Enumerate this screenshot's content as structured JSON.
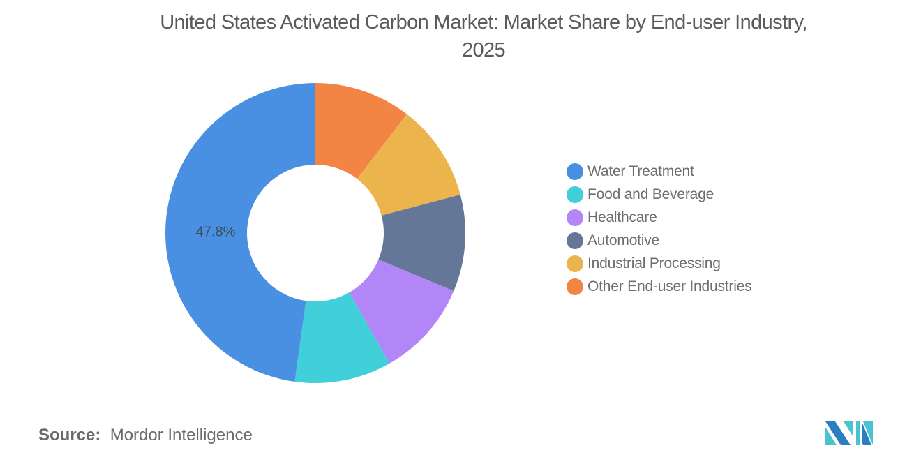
{
  "title_line1": "United States Activated Carbon Market: Market Share by End-user Industry,",
  "title_line2": "2025",
  "source": {
    "label": "Source:",
    "value": "Mordor Intelligence"
  },
  "chart_data": {
    "type": "pie",
    "variant": "donut",
    "title": "United States Activated Carbon Market: Market Share by End-user Industry, 2025",
    "categories": [
      "Water Treatment",
      "Food and Beverage",
      "Healthcare",
      "Automotive",
      "Industrial Processing",
      "Other End-user Industries"
    ],
    "values": [
      47.8,
      10.44,
      10.44,
      10.44,
      10.44,
      10.44
    ],
    "colors": [
      "#4a90e2",
      "#41cfd9",
      "#b386f8",
      "#657798",
      "#ebb44d",
      "#f28444"
    ],
    "data_labels": [
      {
        "category": "Water Treatment",
        "text": "47.8%"
      }
    ],
    "unit": "%",
    "legend_position": "right",
    "start_angle_deg": 0,
    "direction": "clockwise-from-top, Other End-user Industries first"
  },
  "legend": {
    "items": [
      {
        "label": "Water Treatment",
        "color": "#4a90e2"
      },
      {
        "label": "Food and Beverage",
        "color": "#41cfd9"
      },
      {
        "label": "Healthcare",
        "color": "#b386f8"
      },
      {
        "label": "Automotive",
        "color": "#657798"
      },
      {
        "label": "Industrial Processing",
        "color": "#ebb44d"
      },
      {
        "label": "Other End-user Industries",
        "color": "#f28444"
      }
    ]
  },
  "logo": {
    "colors": [
      "#2a7fc1",
      "#47c4cf"
    ]
  }
}
